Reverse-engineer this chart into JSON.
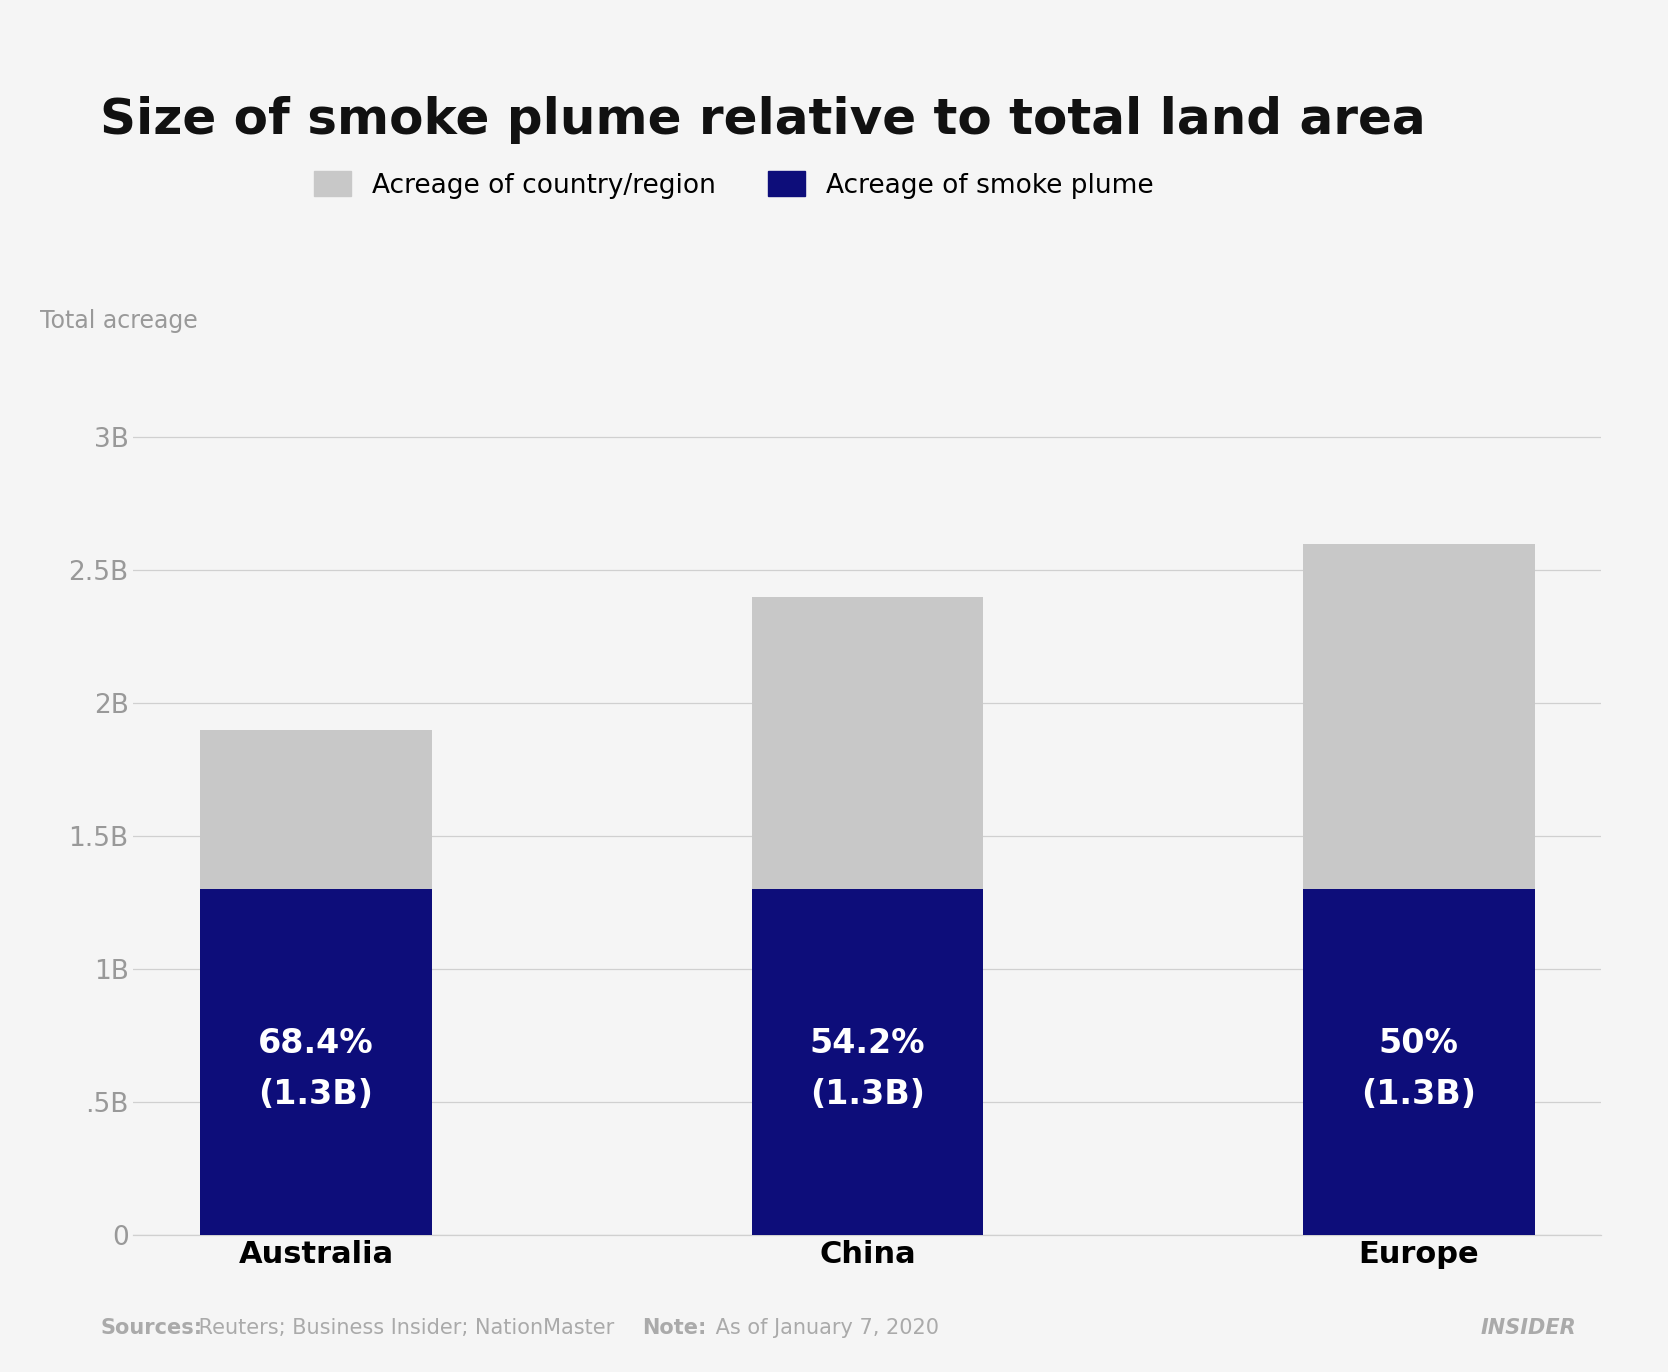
{
  "title": "Size of smoke plume relative to total land area",
  "ylabel_text": "Total acreage",
  "categories": [
    "Australia",
    "China",
    "Europe"
  ],
  "smoke_values": [
    1300000000,
    1300000000,
    1300000000
  ],
  "total_values": [
    1900000000,
    2400000000,
    2600000000
  ],
  "percentages": [
    "68.4%",
    "54.2%",
    "50%"
  ],
  "acreage_labels": [
    "(1.3B)",
    "(1.3B)",
    "(1.3B)"
  ],
  "smoke_color": "#0d0d7a",
  "country_color": "#c8c8c8",
  "background_color": "#f5f5f5",
  "ylim": [
    0,
    3200000000
  ],
  "yticks": [
    0,
    500000000,
    1000000000,
    1500000000,
    2000000000,
    2500000000,
    3000000000
  ],
  "ytick_labels": [
    "0",
    ".5B",
    "1B",
    "1.5B",
    "2B",
    "2.5B",
    "3B"
  ],
  "legend_country_label": "Acreage of country/region",
  "legend_smoke_label": "Acreage of smoke plume",
  "sources_bold": "Sources:",
  "sources_rest": " Reuters; Business Insider; NationMaster",
  "note_bold": "Note:",
  "note_rest": " As of January 7, 2020",
  "brand_text": "INSIDER",
  "title_fontsize": 36,
  "axis_label_fontsize": 17,
  "tick_fontsize": 19,
  "bar_label_pct_fontsize": 24,
  "category_fontsize": 22,
  "legend_fontsize": 19,
  "footer_fontsize": 15
}
